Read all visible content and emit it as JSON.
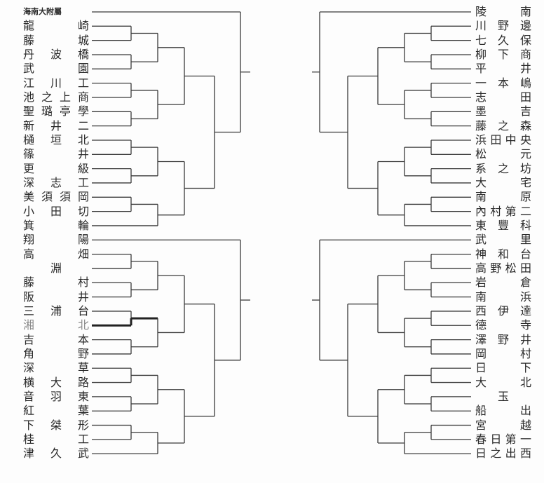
{
  "left": {
    "top": [
      "海南大附屬",
      "龍崎",
      "藤城",
      "丹波橋",
      "武園",
      "江川工",
      "池之上商",
      "聖璐亭學",
      "新井二",
      "樋垣北",
      "篠井",
      "更級",
      "深志工",
      "美須須岡",
      "小田切",
      "箕輪"
    ],
    "bottom": [
      "翔陽",
      "高畑",
      "淵",
      "藤村",
      "阪井",
      "三浦台",
      "湘北",
      "吉本",
      "角野",
      "深草",
      "横大路",
      "音羽東",
      "紅葉",
      "下桀形",
      "桂工",
      "津久武"
    ]
  },
  "right": {
    "top": [
      "陵南",
      "川野邊",
      "七久保",
      "柳下商",
      "平井",
      "一本嶋",
      "志田",
      "墨吉",
      "藤之森",
      "浜田中央",
      "松元",
      "系之坊",
      "大宅",
      "南原",
      "內村第二",
      "東豐科"
    ],
    "bottom": [
      "武里",
      "神和台",
      "高野松田",
      "岩倉",
      "南浜",
      "西伊達",
      "德寺",
      "澤野井",
      "岡村",
      "日下",
      "大北",
      "玉",
      "船出",
      "宮越",
      "春日第一",
      "日之出西"
    ]
  },
  "highlight": {
    "team": "湘北",
    "color": "#222222"
  },
  "colors": {
    "line": "#3a3a3a",
    "text": "#2a2a2a",
    "background": "#fdfdfd"
  }
}
